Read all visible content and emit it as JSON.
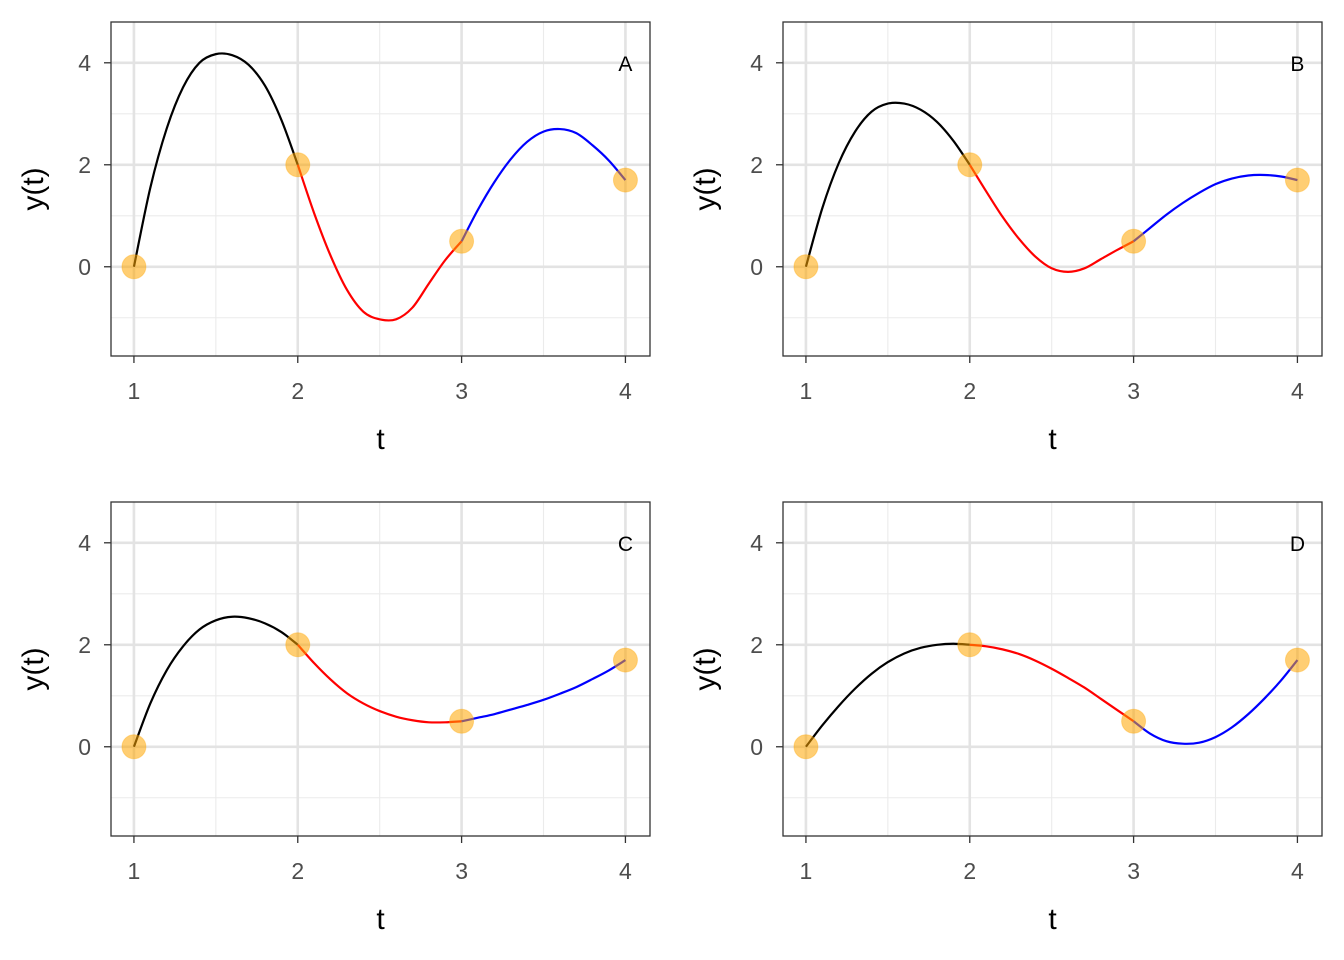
{
  "chart_data": [
    {
      "type": "line",
      "panel_label": "A",
      "xlabel": "t",
      "ylabel": "y(t)",
      "xlim": [
        0.86,
        4.15
      ],
      "ylim": [
        -1.75,
        4.8
      ],
      "x_ticks": [
        1,
        2,
        3,
        4
      ],
      "y_ticks": [
        0,
        2,
        4
      ],
      "grid": true,
      "points": [
        {
          "x": 1,
          "y": 0
        },
        {
          "x": 2,
          "y": 2
        },
        {
          "x": 3,
          "y": 0.5
        },
        {
          "x": 4,
          "y": 1.7
        }
      ],
      "segments": [
        {
          "color": "#000000",
          "x": [
            1,
            1.1,
            1.2,
            1.3,
            1.4,
            1.5,
            1.6,
            1.7,
            1.8,
            1.9,
            2
          ],
          "y": [
            0,
            1.55,
            2.71,
            3.52,
            4.0,
            4.17,
            4.15,
            3.96,
            3.55,
            2.88,
            2.0
          ]
        },
        {
          "color": "#ff0000",
          "x": [
            2,
            2.1,
            2.2,
            2.3,
            2.4,
            2.5,
            2.6,
            2.7,
            2.8,
            2.9,
            3
          ],
          "y": [
            2.0,
            1.05,
            0.22,
            -0.45,
            -0.88,
            -1.03,
            -1.03,
            -0.8,
            -0.33,
            0.13,
            0.5
          ]
        },
        {
          "color": "#0000ff",
          "x": [
            3,
            3.1,
            3.2,
            3.3,
            3.4,
            3.5,
            3.6,
            3.7,
            3.8,
            3.9,
            4
          ],
          "y": [
            0.5,
            1.12,
            1.66,
            2.11,
            2.45,
            2.65,
            2.7,
            2.62,
            2.38,
            2.08,
            1.7
          ]
        }
      ]
    },
    {
      "type": "line",
      "panel_label": "B",
      "xlabel": "t",
      "ylabel": "y(t)",
      "xlim": [
        0.86,
        4.15
      ],
      "ylim": [
        -1.75,
        4.8
      ],
      "x_ticks": [
        1,
        2,
        3,
        4
      ],
      "y_ticks": [
        0,
        2,
        4
      ],
      "grid": true,
      "points": [
        {
          "x": 1,
          "y": 0
        },
        {
          "x": 2,
          "y": 2
        },
        {
          "x": 3,
          "y": 0.5
        },
        {
          "x": 4,
          "y": 1.7
        }
      ],
      "segments": [
        {
          "color": "#000000",
          "x": [
            1,
            1.1,
            1.2,
            1.3,
            1.4,
            1.5,
            1.6,
            1.7,
            1.8,
            1.9,
            2
          ],
          "y": [
            0,
            1.15,
            2.03,
            2.65,
            3.04,
            3.2,
            3.2,
            3.08,
            2.84,
            2.47,
            2.0
          ]
        },
        {
          "color": "#ff0000",
          "x": [
            2,
            2.1,
            2.2,
            2.3,
            2.4,
            2.5,
            2.6,
            2.7,
            2.8,
            2.9,
            3
          ],
          "y": [
            2.0,
            1.48,
            0.98,
            0.55,
            0.2,
            -0.03,
            -0.1,
            -0.03,
            0.15,
            0.33,
            0.5
          ]
        },
        {
          "color": "#0000ff",
          "x": [
            3,
            3.1,
            3.2,
            3.3,
            3.4,
            3.5,
            3.6,
            3.7,
            3.8,
            3.9,
            4
          ],
          "y": [
            0.5,
            0.76,
            1.02,
            1.25,
            1.45,
            1.62,
            1.73,
            1.79,
            1.8,
            1.77,
            1.7
          ]
        }
      ]
    },
    {
      "type": "line",
      "panel_label": "C",
      "xlabel": "t",
      "ylabel": "y(t)",
      "xlim": [
        0.86,
        4.15
      ],
      "ylim": [
        -1.75,
        4.8
      ],
      "x_ticks": [
        1,
        2,
        3,
        4
      ],
      "y_ticks": [
        0,
        2,
        4
      ],
      "grid": true,
      "points": [
        {
          "x": 1,
          "y": 0
        },
        {
          "x": 2,
          "y": 2
        },
        {
          "x": 3,
          "y": 0.5
        },
        {
          "x": 4,
          "y": 1.7
        }
      ],
      "segments": [
        {
          "color": "#000000",
          "x": [
            1,
            1.1,
            1.2,
            1.3,
            1.4,
            1.5,
            1.6,
            1.7,
            1.8,
            1.9,
            2
          ],
          "y": [
            0,
            0.85,
            1.5,
            1.97,
            2.3,
            2.48,
            2.55,
            2.52,
            2.42,
            2.25,
            2.0
          ]
        },
        {
          "color": "#ff0000",
          "x": [
            2,
            2.1,
            2.2,
            2.3,
            2.4,
            2.5,
            2.6,
            2.7,
            2.8,
            2.9,
            3
          ],
          "y": [
            2.0,
            1.64,
            1.32,
            1.05,
            0.85,
            0.7,
            0.59,
            0.52,
            0.48,
            0.48,
            0.5
          ]
        },
        {
          "color": "#0000ff",
          "x": [
            3,
            3.1,
            3.2,
            3.3,
            3.4,
            3.5,
            3.6,
            3.7,
            3.8,
            3.9,
            4
          ],
          "y": [
            0.5,
            0.57,
            0.64,
            0.73,
            0.82,
            0.92,
            1.04,
            1.17,
            1.33,
            1.5,
            1.7
          ]
        }
      ]
    },
    {
      "type": "line",
      "panel_label": "D",
      "xlabel": "t",
      "ylabel": "y(t)",
      "xlim": [
        0.86,
        4.15
      ],
      "ylim": [
        -1.75,
        4.8
      ],
      "x_ticks": [
        1,
        2,
        3,
        4
      ],
      "y_ticks": [
        0,
        2,
        4
      ],
      "grid": true,
      "points": [
        {
          "x": 1,
          "y": 0
        },
        {
          "x": 2,
          "y": 2
        },
        {
          "x": 3,
          "y": 0.5
        },
        {
          "x": 4,
          "y": 1.7
        }
      ],
      "segments": [
        {
          "color": "#000000",
          "x": [
            1,
            1.1,
            1.2,
            1.3,
            1.4,
            1.5,
            1.6,
            1.7,
            1.8,
            1.9,
            2
          ],
          "y": [
            0,
            0.42,
            0.8,
            1.14,
            1.43,
            1.66,
            1.83,
            1.94,
            2.0,
            2.02,
            2.0
          ]
        },
        {
          "color": "#ff0000",
          "x": [
            2,
            2.1,
            2.2,
            2.3,
            2.4,
            2.5,
            2.6,
            2.7,
            2.8,
            2.9,
            3
          ],
          "y": [
            2.0,
            1.97,
            1.91,
            1.82,
            1.69,
            1.53,
            1.35,
            1.16,
            0.94,
            0.72,
            0.5
          ]
        },
        {
          "color": "#0000ff",
          "x": [
            3,
            3.1,
            3.2,
            3.3,
            3.4,
            3.5,
            3.6,
            3.7,
            3.8,
            3.9,
            4
          ],
          "y": [
            0.5,
            0.26,
            0.11,
            0.06,
            0.08,
            0.19,
            0.38,
            0.64,
            0.95,
            1.3,
            1.7
          ]
        }
      ]
    }
  ]
}
